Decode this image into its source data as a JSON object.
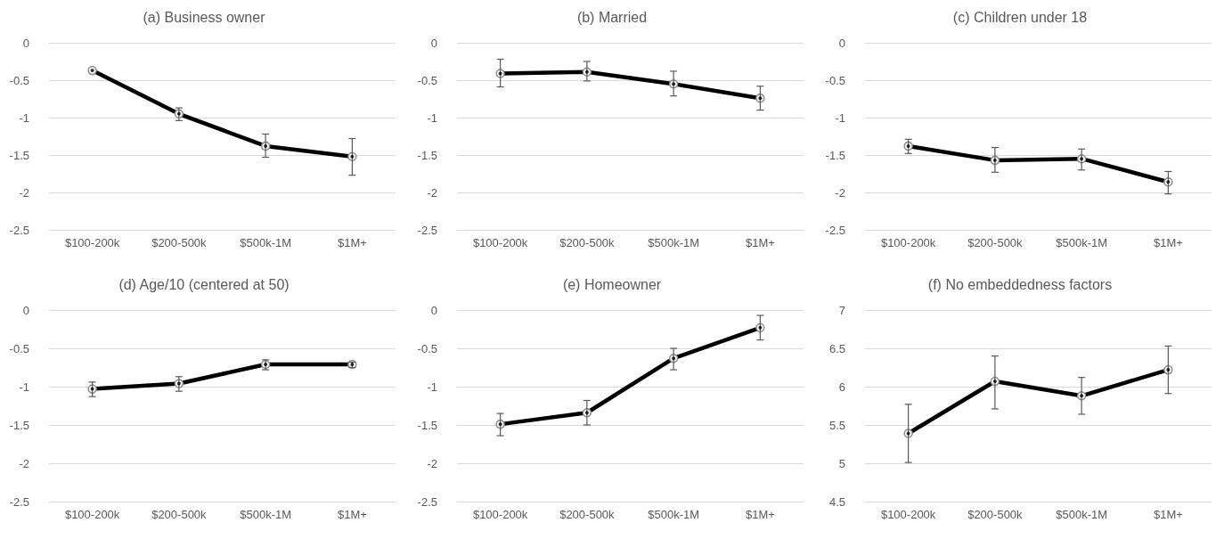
{
  "chart_data": [
    {
      "type": "line",
      "title": "(a) Business owner",
      "categories": [
        "$100-200k",
        "$200-500k",
        "$500k-1M",
        "$1M+"
      ],
      "series": [
        {
          "color": "#000000",
          "values": [
            -0.37,
            -0.95,
            -1.38,
            -1.52
          ],
          "errors": [
            null,
            [
              -1.04,
              -0.87
            ],
            [
              -1.53,
              -1.22
            ],
            [
              -1.77,
              -1.28
            ]
          ]
        }
      ],
      "ylim": [
        -2.5,
        0
      ],
      "yticks": [
        -2.5,
        -2,
        -1.5,
        -1,
        -0.5,
        0
      ],
      "grid": "y",
      "marker": "circle",
      "line_style": "solid"
    },
    {
      "type": "line",
      "title": "(b) Married",
      "categories": [
        "$100-200k",
        "$200-500k",
        "$500k-1M",
        "$1M+"
      ],
      "series": [
        {
          "color": "#000000",
          "values": [
            -0.41,
            -0.39,
            -0.55,
            -0.74
          ],
          "errors": [
            [
              -0.59,
              -0.22
            ],
            [
              -0.51,
              -0.25
            ],
            [
              -0.71,
              -0.38
            ],
            [
              -0.9,
              -0.58
            ]
          ]
        }
      ],
      "ylim": [
        -2.5,
        0
      ],
      "yticks": [
        -2.5,
        -2,
        -1.5,
        -1,
        -0.5,
        0
      ],
      "grid": "y",
      "marker": "circle",
      "line_style": "solid"
    },
    {
      "type": "line",
      "title": "(c) Children under 18",
      "categories": [
        "$100-200k",
        "$200-500k",
        "$500k-1M",
        "$1M+"
      ],
      "series": [
        {
          "color": "#000000",
          "values": [
            -1.38,
            -1.57,
            -1.55,
            -1.86
          ],
          "errors": [
            [
              -1.48,
              -1.29
            ],
            [
              -1.73,
              -1.4
            ],
            [
              -1.7,
              -1.42
            ],
            [
              -2.02,
              -1.72
            ]
          ]
        }
      ],
      "ylim": [
        -2.5,
        0
      ],
      "yticks": [
        -2.5,
        -2,
        -1.5,
        -1,
        -0.5,
        0
      ],
      "grid": "y",
      "marker": "circle",
      "line_style": "solid"
    },
    {
      "type": "line",
      "title": "(d) Age/10 (centered at 50)",
      "categories": [
        "$100-200k",
        "$200-500k",
        "$500k-1M",
        "$1M+"
      ],
      "series": [
        {
          "color": "#000000",
          "values": [
            -1.03,
            -0.96,
            -0.71,
            -0.71
          ],
          "errors": [
            [
              -1.13,
              -0.94
            ],
            [
              -1.06,
              -0.87
            ],
            [
              -0.78,
              -0.65
            ],
            [
              -0.75,
              -0.68
            ]
          ]
        }
      ],
      "ylim": [
        -2.5,
        0
      ],
      "yticks": [
        -2.5,
        -2,
        -1.5,
        -1,
        -0.5,
        0
      ],
      "grid": "y",
      "marker": "circle",
      "line_style": "solid"
    },
    {
      "type": "line",
      "title": "(e) Homeowner",
      "categories": [
        "$100-200k",
        "$200-500k",
        "$500k-1M",
        "$1M+"
      ],
      "series": [
        {
          "color": "#000000",
          "values": [
            -1.49,
            -1.34,
            -0.63,
            -0.23
          ],
          "errors": [
            [
              -1.64,
              -1.35
            ],
            [
              -1.5,
              -1.18
            ],
            [
              -0.78,
              -0.5
            ],
            [
              -0.39,
              -0.07
            ]
          ]
        }
      ],
      "ylim": [
        -2.5,
        0
      ],
      "yticks": [
        -2.5,
        -2,
        -1.5,
        -1,
        -0.5,
        0
      ],
      "grid": "y",
      "marker": "circle",
      "line_style": "solid"
    },
    {
      "type": "line",
      "title": "(f) No embeddedness factors",
      "categories": [
        "$100-200k",
        "$200-500k",
        "$500k-1M",
        "$1M+"
      ],
      "series": [
        {
          "color": "#000000",
          "values": [
            5.39,
            6.07,
            5.88,
            6.22
          ],
          "errors": [
            [
              5.01,
              5.77
            ],
            [
              5.71,
              6.4
            ],
            [
              5.64,
              6.12
            ],
            [
              5.91,
              6.53
            ]
          ]
        }
      ],
      "ylim": [
        4.5,
        7
      ],
      "yticks": [
        4.5,
        5,
        5.5,
        6,
        6.5,
        7
      ],
      "grid": "y",
      "marker": "circle",
      "line_style": "solid"
    }
  ]
}
